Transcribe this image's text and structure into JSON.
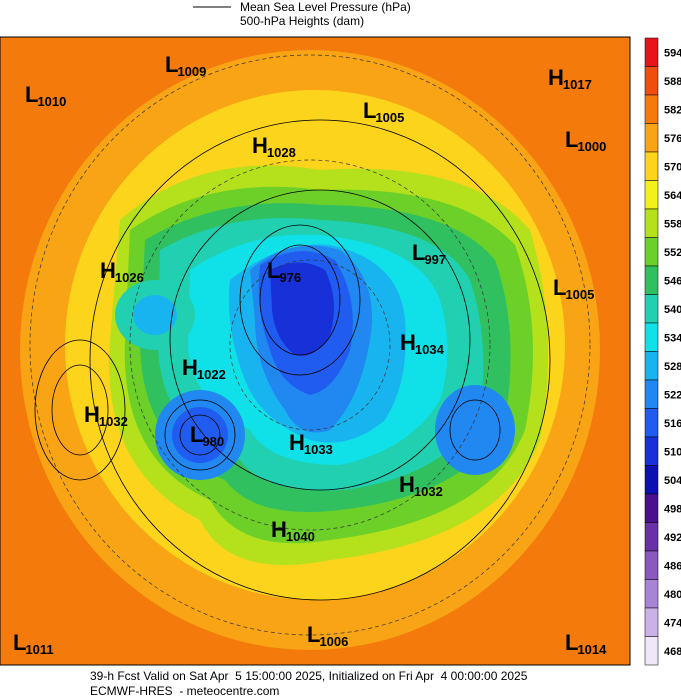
{
  "header": {
    "lines": [
      "Mean Sea Level Pressure (hPa)",
      "500-hPa Heights (dam)"
    ]
  },
  "centers": [
    {
      "letter": "L",
      "value": "1009"
    },
    {
      "letter": "L",
      "value": "1010"
    },
    {
      "letter": "H",
      "value": "1017"
    },
    {
      "letter": "L",
      "value": "1005"
    },
    {
      "letter": "L",
      "value": "1000"
    },
    {
      "letter": "H",
      "value": "1028"
    },
    {
      "letter": "L",
      "value": "976"
    },
    {
      "letter": "L",
      "value": "997"
    },
    {
      "letter": "H",
      "value": "1026"
    },
    {
      "letter": "L",
      "value": "1005"
    },
    {
      "letter": "H",
      "value": "1034"
    },
    {
      "letter": "H",
      "value": "1022"
    },
    {
      "letter": "H",
      "value": "1032"
    },
    {
      "letter": "L",
      "value": "980"
    },
    {
      "letter": "H",
      "value": "1033"
    },
    {
      "letter": "H",
      "value": "1032"
    },
    {
      "letter": "H",
      "value": "1040"
    },
    {
      "letter": "L",
      "value": "1011"
    },
    {
      "letter": "L",
      "value": "1006"
    },
    {
      "letter": "L",
      "value": "1014"
    }
  ],
  "color_scale": [
    {
      "label": "594",
      "color": "#e8141c"
    },
    {
      "label": "588",
      "color": "#f04e0c"
    },
    {
      "label": "582",
      "color": "#f47a0c"
    },
    {
      "label": "576",
      "color": "#f8a414"
    },
    {
      "label": "570",
      "color": "#fcd41c"
    },
    {
      "label": "564",
      "color": "#f4f01c"
    },
    {
      "label": "558",
      "color": "#b4e01c"
    },
    {
      "label": "552",
      "color": "#6cd028"
    },
    {
      "label": "546",
      "color": "#30c060"
    },
    {
      "label": "540",
      "color": "#20d0b0"
    },
    {
      "label": "534",
      "color": "#10e0e8"
    },
    {
      "label": "528",
      "color": "#18b4f0"
    },
    {
      "label": "522",
      "color": "#2088f0"
    },
    {
      "label": "516",
      "color": "#205cf0"
    },
    {
      "label": "510",
      "color": "#1830d8"
    },
    {
      "label": "504",
      "color": "#0c10b0"
    },
    {
      "label": "498",
      "color": "#4a1090"
    },
    {
      "label": "492",
      "color": "#6a30a8"
    },
    {
      "label": "486",
      "color": "#8a58c0"
    },
    {
      "label": "480",
      "color": "#aa84d4"
    },
    {
      "label": "474",
      "color": "#ccb0e8"
    },
    {
      "label": "468",
      "color": "#f0e8f8"
    }
  ],
  "footer": {
    "lines": [
      "39-h Fcst Valid on Sat Apr  5 15:00:00 2025, Initialized on Fri Apr  4 00:00:00 2025",
      "ECMWF-HRES  - meteocentre.com"
    ]
  }
}
